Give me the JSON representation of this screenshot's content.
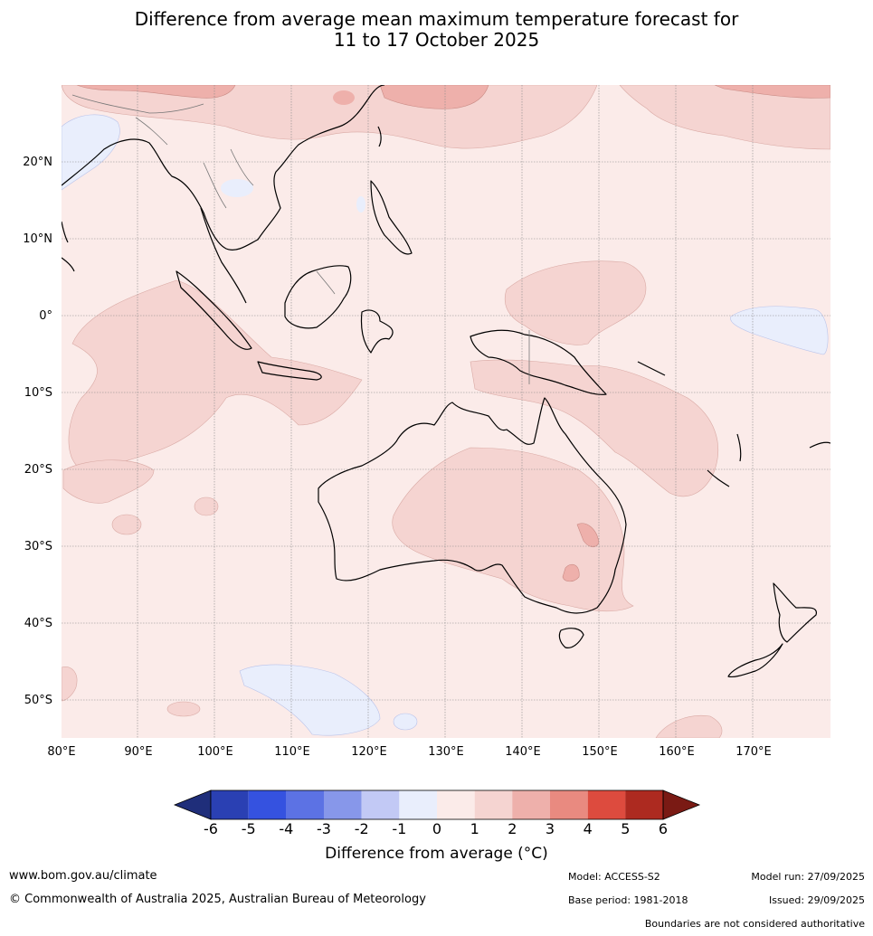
{
  "title": {
    "line1": "Difference from average mean maximum temperature forecast for",
    "line2": "11 to 17 October 2025"
  },
  "map": {
    "lon_labels": [
      "80°E",
      "90°E",
      "100°E",
      "110°E",
      "120°E",
      "130°E",
      "140°E",
      "150°E",
      "160°E",
      "170°E"
    ],
    "lat_labels": [
      "20°N",
      "10°N",
      "0°",
      "10°S",
      "20°S",
      "30°S",
      "40°S",
      "50°S"
    ],
    "colors": {
      "ocean_base": "#fbebe9",
      "warm_1_2": "#f5d4d1",
      "warm_2_3": "#eeb0ab",
      "cool_0_1": "#e9eefc"
    }
  },
  "colorbar": {
    "ticks": [
      "-6",
      "-5",
      "-4",
      "-3",
      "-2",
      "-1",
      "0",
      "1",
      "2",
      "3",
      "4",
      "5",
      "6"
    ],
    "colors": [
      "#1f2e7a",
      "#2a40b3",
      "#3552e0",
      "#5c72e4",
      "#8797ea",
      "#c2c9f5",
      "#e9eefc",
      "#fbebe9",
      "#f5d4d1",
      "#eeb0ab",
      "#e98a80",
      "#dd4b3e",
      "#ad2a20",
      "#7a1a14"
    ],
    "label": "Difference from average (°C)"
  },
  "footer": {
    "website": "www.bom.gov.au/climate",
    "copyright": "© Commonwealth of Australia 2025, Australian Bureau of Meteorology",
    "model": "Model: ACCESS-S2",
    "base_period": "Base period: 1981-2018",
    "model_run": "Model run: 27/09/2025",
    "issued": "Issued: 29/09/2025",
    "disclaimer": "Boundaries are not considered authoritative"
  }
}
